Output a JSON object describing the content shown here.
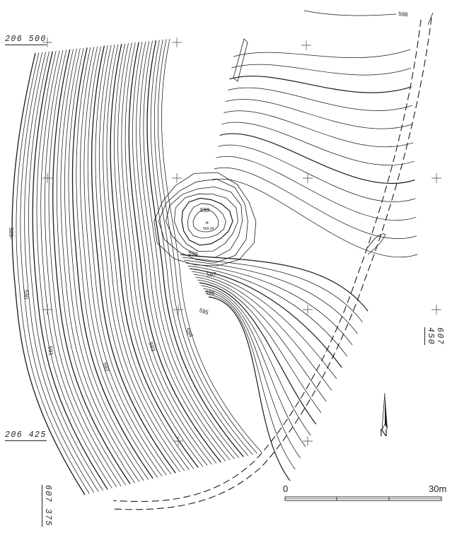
{
  "grid_labels": {
    "north_top": "206 500",
    "north_bottom": "206 425",
    "east_right": "607 450",
    "east_bottom": "607 375"
  },
  "contour_labels": [
    {
      "key": "c598_top",
      "text": "598"
    },
    {
      "key": "c599",
      "text": "599"
    },
    {
      "key": "c598",
      "text": "598"
    },
    {
      "key": "c597",
      "text": "597"
    },
    {
      "key": "c596",
      "text": "596"
    },
    {
      "key": "c595",
      "text": "595"
    },
    {
      "key": "c594",
      "text": "594"
    },
    {
      "key": "c593",
      "text": "593"
    },
    {
      "key": "c592",
      "text": "592"
    },
    {
      "key": "c591",
      "text": "591"
    },
    {
      "key": "c590",
      "text": "590"
    },
    {
      "key": "c589",
      "text": "589-"
    }
  ],
  "summit": {
    "marker": "×",
    "elevation": "599.34"
  },
  "scale_bar": {
    "start_label": "0",
    "end_label": "30m"
  },
  "north_arrow": {
    "label": "N"
  },
  "colors": {
    "ink": "#1a1a1a",
    "paper": "#ffffff"
  }
}
